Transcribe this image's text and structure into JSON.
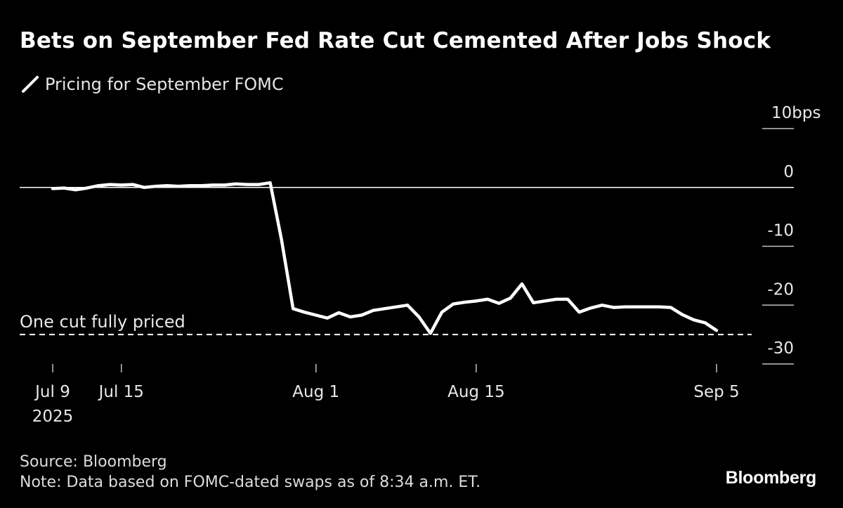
{
  "title": "Bets on September Fed Rate Cut Cemented After Jobs Shock",
  "legend": {
    "label": "Pricing for September FOMC",
    "color": "#ffffff"
  },
  "chart_data": {
    "type": "line",
    "title": "Bets on September Fed Rate Cut Cemented After Jobs Shock",
    "ylabel": "bps",
    "ylim": [
      -30,
      10
    ],
    "yticks": [
      {
        "value": 10,
        "label": "10bps"
      },
      {
        "value": 0,
        "label": "0"
      },
      {
        "value": -10,
        "label": "-10"
      },
      {
        "value": -20,
        "label": "-20"
      },
      {
        "value": -30,
        "label": "-30"
      }
    ],
    "x_start": "2025-07-09",
    "x_end": "2025-09-05",
    "xticks": [
      {
        "day": 0,
        "label": "Jul 9",
        "sublabel": "2025"
      },
      {
        "day": 6,
        "label": "Jul 15",
        "sublabel": ""
      },
      {
        "day": 23,
        "label": "Aug 1",
        "sublabel": ""
      },
      {
        "day": 37,
        "label": "Aug 15",
        "sublabel": ""
      },
      {
        "day": 58,
        "label": "Sep 5",
        "sublabel": ""
      }
    ],
    "reference_lines": [
      {
        "value": 0,
        "style": "solid",
        "label": ""
      },
      {
        "value": -25,
        "style": "dashed",
        "label": "One cut fully priced"
      }
    ],
    "series": [
      {
        "name": "Pricing for September FOMC",
        "color": "#ffffff",
        "points": [
          [
            0,
            -0.2
          ],
          [
            1,
            -0.1
          ],
          [
            2,
            -0.4
          ],
          [
            3,
            -0.1
          ],
          [
            4,
            0.3
          ],
          [
            5,
            0.5
          ],
          [
            6,
            0.4
          ],
          [
            7,
            0.5
          ],
          [
            8,
            0.0
          ],
          [
            9,
            0.2
          ],
          [
            10,
            0.3
          ],
          [
            11,
            0.2
          ],
          [
            12,
            0.3
          ],
          [
            13,
            0.3
          ],
          [
            14,
            0.4
          ],
          [
            15,
            0.4
          ],
          [
            16,
            0.6
          ],
          [
            17,
            0.5
          ],
          [
            18,
            0.5
          ],
          [
            19,
            0.8
          ],
          [
            20,
            -9.0
          ],
          [
            21,
            -20.6
          ],
          [
            22,
            -21.2
          ],
          [
            23,
            -21.7
          ],
          [
            24,
            -22.2
          ],
          [
            25,
            -21.3
          ],
          [
            26,
            -22.0
          ],
          [
            27,
            -21.7
          ],
          [
            28,
            -20.9
          ],
          [
            29,
            -20.6
          ],
          [
            30,
            -20.3
          ],
          [
            31,
            -20.0
          ],
          [
            32,
            -22.0
          ],
          [
            33,
            -24.8
          ],
          [
            34,
            -21.2
          ],
          [
            35,
            -19.8
          ],
          [
            36,
            -19.5
          ],
          [
            37,
            -19.3
          ],
          [
            38,
            -19.0
          ],
          [
            39,
            -19.7
          ],
          [
            40,
            -18.8
          ],
          [
            41,
            -16.4
          ],
          [
            42,
            -19.6
          ],
          [
            43,
            -19.3
          ],
          [
            44,
            -19.0
          ],
          [
            45,
            -19.0
          ],
          [
            46,
            -21.2
          ],
          [
            47,
            -20.5
          ],
          [
            48,
            -20.0
          ],
          [
            49,
            -20.4
          ],
          [
            50,
            -20.3
          ],
          [
            51,
            -20.3
          ],
          [
            52,
            -20.3
          ],
          [
            53,
            -20.3
          ],
          [
            54,
            -20.4
          ],
          [
            55,
            -21.6
          ],
          [
            56,
            -22.5
          ],
          [
            57,
            -23.0
          ],
          [
            58,
            -24.3
          ]
        ]
      }
    ]
  },
  "footer": {
    "source": "Source: Bloomberg",
    "note": "Note: Data based on FOMC-dated swaps as of 8:34 a.m. ET.",
    "brand": "Bloomberg"
  }
}
